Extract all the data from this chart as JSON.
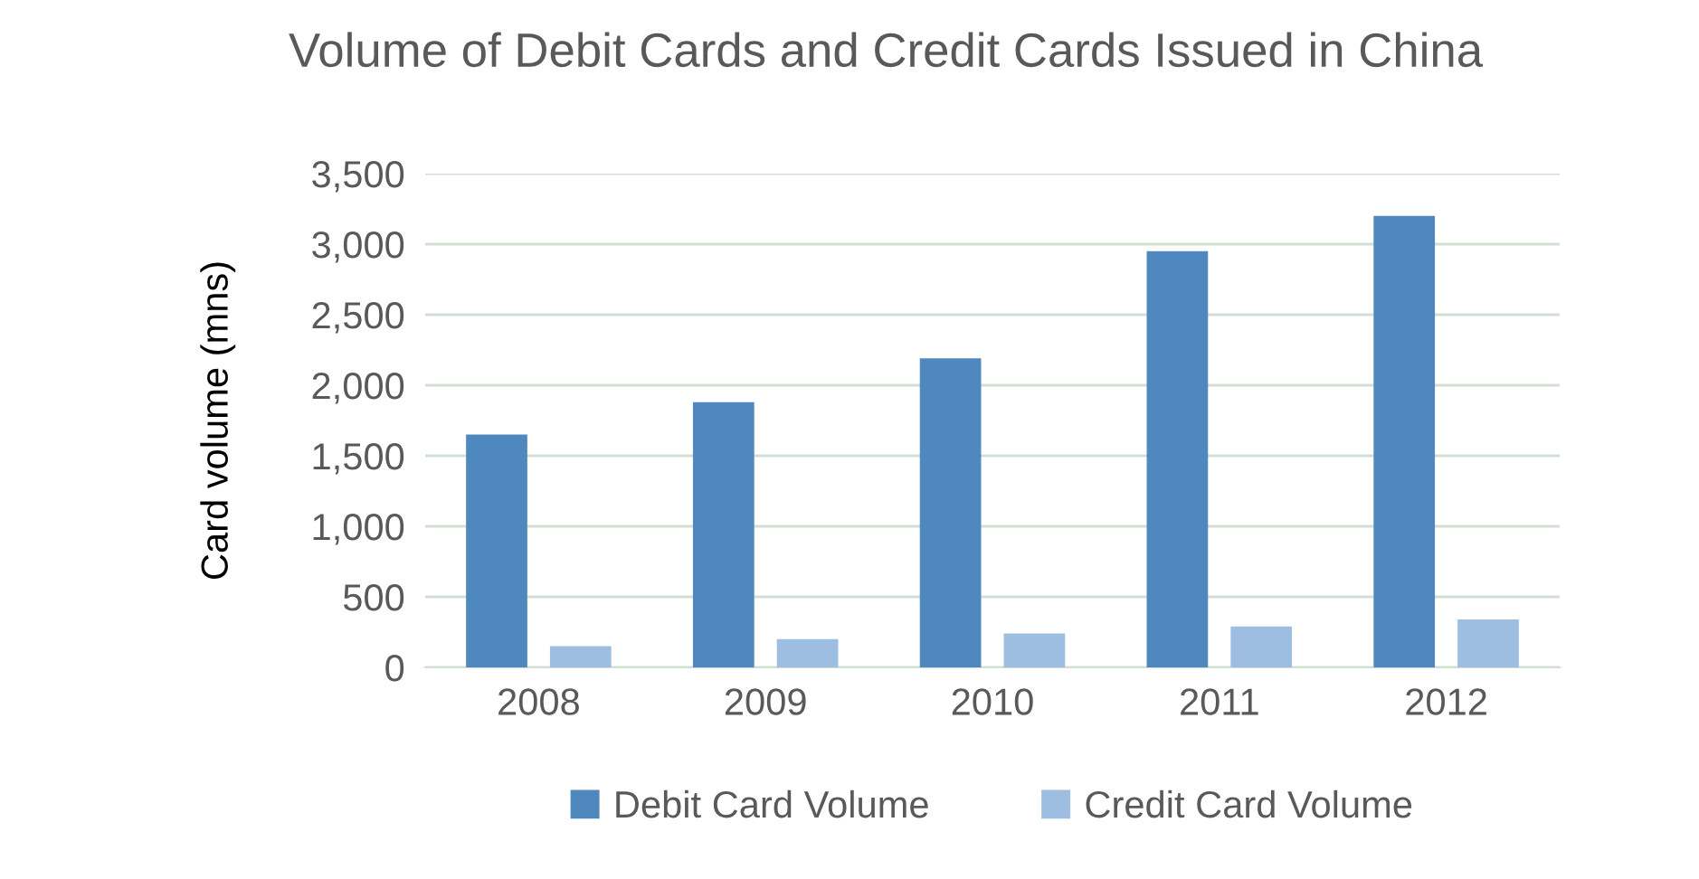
{
  "chart_data": {
    "type": "bar",
    "title": "Volume of Debit Cards and Credit Cards Issued in China",
    "ylabel": "Card volume (mns)",
    "categories": [
      "2008",
      "2009",
      "2010",
      "2011",
      "2012"
    ],
    "series": [
      {
        "name": "Debit Card Volume",
        "color": "#4f88bf",
        "values": [
          1650,
          1880,
          2190,
          2950,
          3200
        ]
      },
      {
        "name": "Credit Card Volume",
        "color": "#9dbde1",
        "values": [
          150,
          200,
          240,
          290,
          340
        ]
      }
    ],
    "ylim": [
      0,
      3500
    ],
    "yticks": [
      {
        "value": 0,
        "label": "0"
      },
      {
        "value": 500,
        "label": "500"
      },
      {
        "value": 1000,
        "label": "1,000"
      },
      {
        "value": 1500,
        "label": "1,500"
      },
      {
        "value": 2000,
        "label": "2,000"
      },
      {
        "value": 2500,
        "label": "2,500"
      },
      {
        "value": 3000,
        "label": "3,000"
      },
      {
        "value": 3500,
        "label": "3,500"
      }
    ],
    "grid": "y",
    "legend": "bottom"
  }
}
